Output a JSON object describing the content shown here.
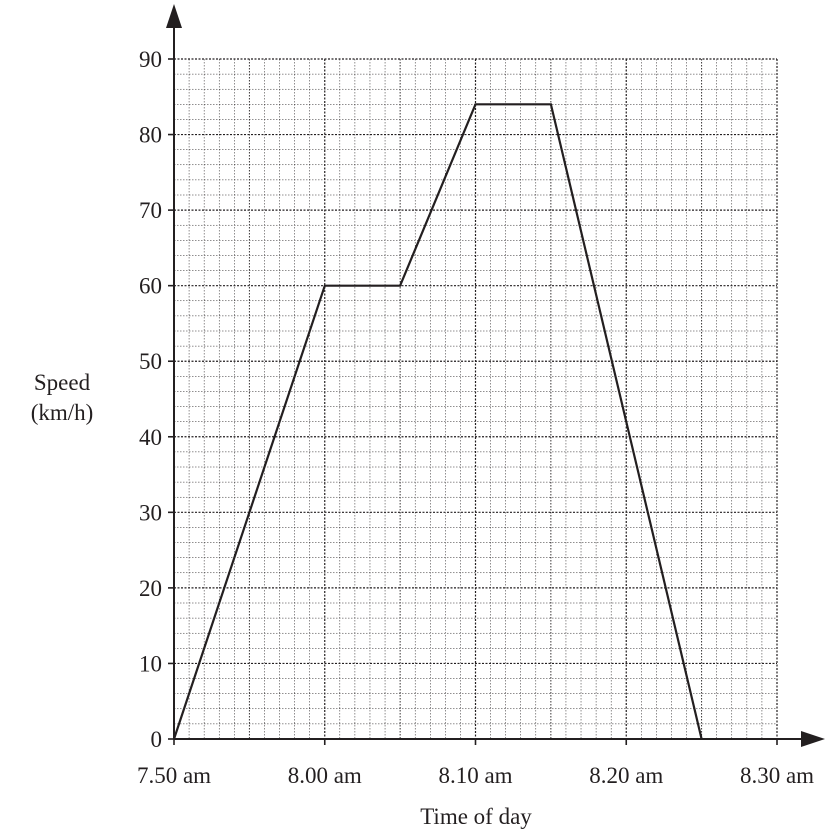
{
  "chart_data": {
    "type": "line",
    "xlabel": "Time of day",
    "ylabel_line1": "Speed",
    "ylabel_line2": "(km/h)",
    "x_ticks": [
      "7.50 am",
      "8.00 am",
      "8.10 am",
      "8.20 am",
      "8.30 am"
    ],
    "y_ticks": [
      "0",
      "10",
      "20",
      "30",
      "40",
      "50",
      "60",
      "70",
      "80",
      "90"
    ],
    "xlim": [
      "7.50 am",
      "8.30 am"
    ],
    "ylim": [
      0,
      90
    ],
    "grid": true,
    "series": [
      {
        "x": [
          "7.50 am",
          "8.00 am",
          "8.05 am",
          "8.10 am",
          "8.15 am",
          "8.25 am"
        ],
        "values": [
          0,
          60,
          60,
          84,
          84,
          0
        ]
      }
    ],
    "colors": {
      "line": "#231f20",
      "grid": "#231f20"
    }
  }
}
